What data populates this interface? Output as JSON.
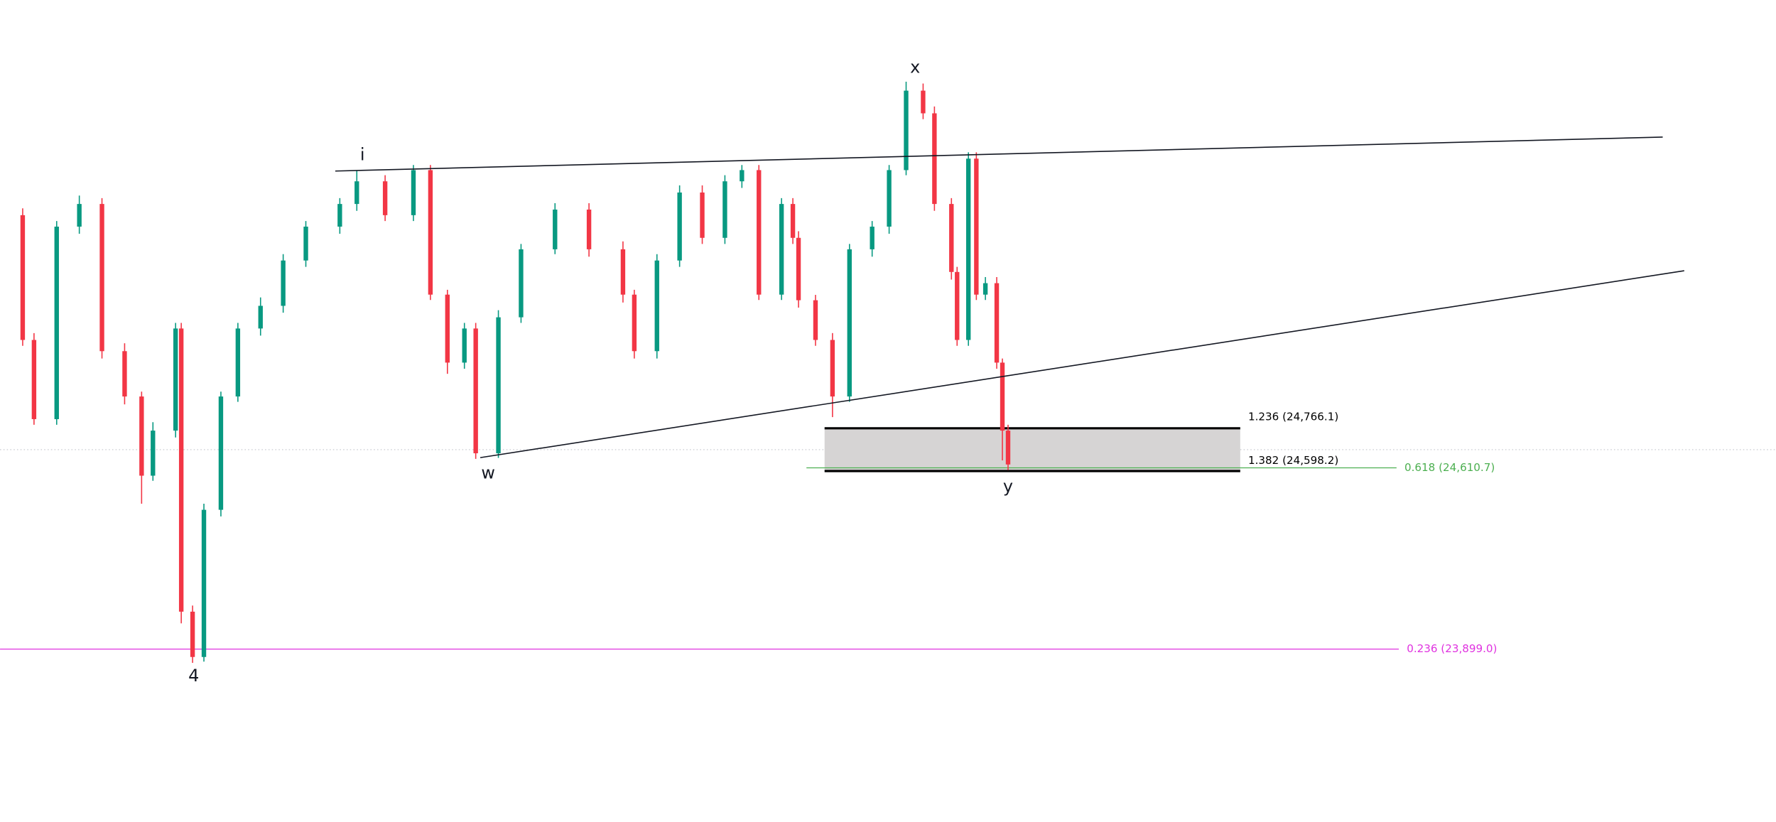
{
  "chart_data": {
    "type": "candlestick",
    "x": [
      20,
      30,
      50,
      70,
      90,
      110,
      125,
      135,
      155,
      160,
      170,
      180,
      195,
      210,
      230,
      250,
      270,
      300,
      315,
      340,
      365,
      380,
      395,
      410,
      420,
      440,
      460,
      490,
      520,
      550,
      560,
      580,
      600,
      620,
      640,
      655,
      670,
      690,
      700,
      705,
      720,
      735,
      750,
      770,
      785,
      800,
      815,
      825,
      840,
      845,
      855,
      862,
      870,
      880,
      885,
      890
    ],
    "open": [
      25603,
      25113,
      24802,
      25558,
      25647,
      25069,
      24891,
      24580,
      24757,
      25158,
      24046,
      23868,
      24446,
      24891,
      25158,
      25247,
      25425,
      25558,
      25647,
      25736,
      25603,
      25780,
      25291,
      25024,
      25158,
      24668,
      25202,
      25469,
      25625,
      25469,
      25291,
      25069,
      25425,
      25692,
      25514,
      25736,
      25780,
      25291,
      25647,
      25514,
      25269,
      25113,
      24891,
      25469,
      25558,
      25780,
      26092,
      26003,
      25647,
      25380,
      25113,
      25825,
      25291,
      25336,
      25024,
      24757
    ],
    "high": [
      25630,
      25140,
      25580,
      25680,
      25670,
      25100,
      24910,
      24790,
      25180,
      25180,
      24070,
      24470,
      24910,
      25180,
      25280,
      25450,
      25580,
      25670,
      25780,
      25760,
      25800,
      25800,
      25310,
      25180,
      25180,
      25230,
      25490,
      25650,
      25650,
      25500,
      25310,
      25450,
      25720,
      25720,
      25760,
      25800,
      25800,
      25670,
      25670,
      25540,
      25290,
      25140,
      25490,
      25580,
      25800,
      26127,
      26120,
      26030,
      25670,
      25400,
      25850,
      25850,
      25360,
      25360,
      25040,
      24780
    ],
    "low": [
      25090,
      24780,
      24780,
      25530,
      25040,
      24860,
      24470,
      24560,
      24730,
      24000,
      23845,
      23850,
      24420,
      24870,
      25130,
      25220,
      25400,
      25530,
      25620,
      25580,
      25580,
      25270,
      24980,
      25000,
      24646,
      24650,
      25180,
      25450,
      25440,
      25260,
      25040,
      25040,
      25400,
      25490,
      25490,
      25710,
      25270,
      25270,
      25490,
      25240,
      25090,
      24810,
      24870,
      25440,
      25530,
      25760,
      25980,
      25620,
      25350,
      25090,
      25090,
      25270,
      25270,
      25000,
      24640,
      24602
    ],
    "close": [
      25113,
      24802,
      25558,
      25647,
      25069,
      24891,
      24580,
      24757,
      25158,
      24046,
      23868,
      24446,
      24891,
      25158,
      25247,
      25425,
      25558,
      25647,
      25736,
      25603,
      25780,
      25291,
      25024,
      25158,
      24668,
      25202,
      25469,
      25625,
      25469,
      25291,
      25069,
      25425,
      25692,
      25514,
      25736,
      25780,
      25291,
      25647,
      25514,
      25269,
      25113,
      24891,
      25469,
      25558,
      25780,
      26092,
      26003,
      25647,
      25380,
      25113,
      25825,
      25291,
      25336,
      25024,
      24757,
      24624
    ],
    "up_color": "#089981",
    "down_color": "#f23645",
    "xlim": [
      0,
      1568
    ],
    "ylim": [
      23220,
      26448
    ],
    "levels": [
      {
        "value": 24766.1,
        "label": "1.236 (24,766.1)",
        "color": "#000000"
      },
      {
        "value": 24598.2,
        "label": "1.382 (24,598.2)",
        "color": "#000000"
      },
      {
        "value": 24610.7,
        "label": "0.618 (24,610.7)",
        "color": "#4caf50"
      },
      {
        "value": 23899.0,
        "label": "0.236 (23,899.0)",
        "color": "#e033e0"
      }
    ],
    "annotations": [
      "i",
      "x",
      "w",
      "y",
      "4"
    ]
  }
}
